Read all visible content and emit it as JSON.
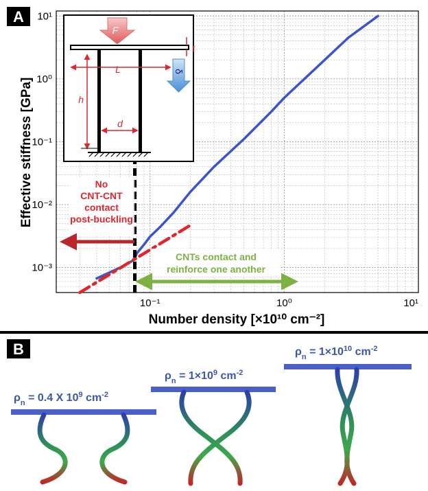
{
  "panels": {
    "a": "A",
    "b": "B"
  },
  "chart_data": {
    "type": "line",
    "x_scale": "log",
    "y_scale": "log",
    "xlim": [
      0.02,
      10
    ],
    "ylim": [
      0.0004,
      12
    ],
    "xlabel": "Number density [×10¹⁰ cm⁻²]",
    "ylabel": "Effective stiffness [GPa]",
    "x_ticks": [
      {
        "value": 0.1,
        "label": "10⁻¹"
      },
      {
        "value": 1,
        "label": "10⁰"
      },
      {
        "value": 10,
        "label": "10¹"
      }
    ],
    "y_ticks": [
      {
        "value": 0.001,
        "label": "10⁻³"
      },
      {
        "value": 0.01,
        "label": "10⁻²"
      },
      {
        "value": 0.1,
        "label": "10⁻¹"
      },
      {
        "value": 1,
        "label": "10⁰"
      },
      {
        "value": 10,
        "label": "10¹"
      }
    ],
    "grid": true,
    "series": [
      {
        "color": "#3a55c8",
        "style": "solid",
        "x": [
          0.04,
          0.06,
          0.075,
          0.08,
          0.09,
          0.1,
          0.12,
          0.15,
          0.2,
          0.3,
          0.5,
          0.8,
          1,
          2,
          3,
          5
        ],
        "y": [
          0.00067,
          0.001,
          0.0013,
          0.0017,
          0.0023,
          0.0031,
          0.0045,
          0.0075,
          0.016,
          0.04,
          0.11,
          0.3,
          0.5,
          2,
          4.5,
          10
        ]
      },
      {
        "color": "#e0262c",
        "style": "dashdot",
        "x": [
          0.03,
          0.2
        ],
        "y": [
          0.0004,
          0.0047
        ]
      }
    ],
    "threshold_x": 0.077,
    "annotations": {
      "left_text": [
        "No",
        "CNT-CNT",
        "contact",
        "post-buckling"
      ],
      "right_text": [
        "CNTs contact and",
        "reinforce one another"
      ]
    },
    "inset_labels": {
      "F": "F",
      "t": "t",
      "L": "L",
      "h": "h",
      "d": "d",
      "delta": "δ"
    }
  },
  "panel_b": {
    "rho1": {
      "prefix": "ρ",
      "sub": "n",
      "text": " = 0.4 X 10",
      "sup": "9",
      "unit": " cm",
      "unit_sup": "-2"
    },
    "rho2": {
      "prefix": "ρ",
      "sub": "n",
      "text": " = 1×10",
      "sup": "9",
      "unit": " cm",
      "unit_sup": "-2"
    },
    "rho3": {
      "prefix": "ρ",
      "sub": "n",
      "text": " = 1×10",
      "sup": "10",
      "unit": " cm",
      "unit_sup": "-2"
    }
  }
}
